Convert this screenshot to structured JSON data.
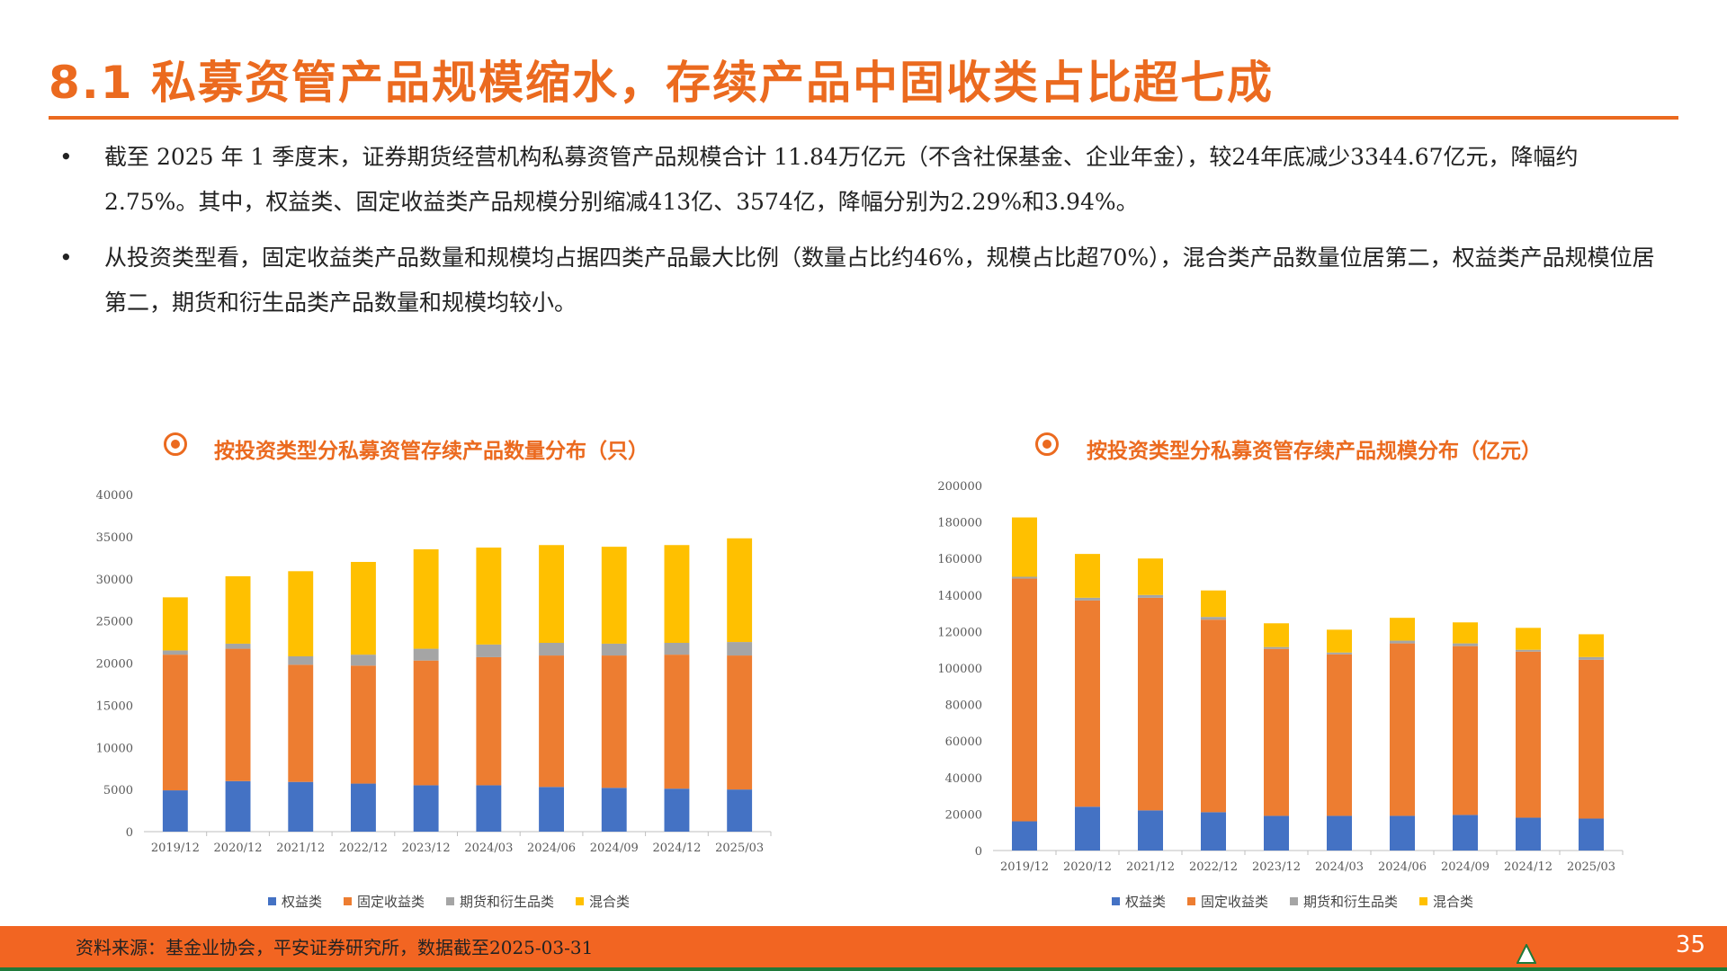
{
  "title": "8.1 私募资管产品规模缩水，存续产品中固收类占比超七成",
  "bullets": [
    "截至 2025 年 1 季度末，证券期货经营机构私募资管产品规模合计 11.84万亿元（不含社保基金、企业年金），较24年底减少3344.67亿元，降幅约2.75%。其中，权益类、固定收益类产品规模分别缩减413亿、3574亿，降幅分别为2.29%和3.94%。",
    "从投资类型看，固定收益类产品数量和规模均占据四类产品最大比例（数量占比约46%，规模占比超70%），混合类产品数量位居第二，权益类产品规模位居第二，期货和衍生品类产品数量和规模均较小。"
  ],
  "bullet_symbol": "•",
  "footer": {
    "source": "资料来源：基金业协会，平安证券研究所，数据截至2025-03-31",
    "page": "35"
  },
  "colors": {
    "accent": "#EB6A1F",
    "equity": "#4472C4",
    "fixed": "#ED7D31",
    "futures": "#A5A5A5",
    "mixed": "#FFC000"
  },
  "chart_data": [
    {
      "type": "bar",
      "stacked": true,
      "title": "按投资类型分私募资管存续产品数量分布（只）",
      "categories": [
        "2019/12",
        "2020/12",
        "2021/12",
        "2022/12",
        "2023/12",
        "2024/03",
        "2024/06",
        "2024/09",
        "2024/12",
        "2025/03"
      ],
      "ylim": [
        0,
        40000
      ],
      "yticks": [
        0,
        5000,
        10000,
        15000,
        20000,
        25000,
        30000,
        35000,
        40000
      ],
      "legend_position": "bottom",
      "series": [
        {
          "name": "权益类",
          "color": "#4472C4",
          "values": [
            4900,
            6000,
            5900,
            5700,
            5500,
            5500,
            5300,
            5200,
            5100,
            5000
          ]
        },
        {
          "name": "固定收益类",
          "color": "#ED7D31",
          "values": [
            16100,
            15700,
            13900,
            14000,
            14800,
            15200,
            15600,
            15700,
            15900,
            15900
          ]
        },
        {
          "name": "期货和衍生品类",
          "color": "#A5A5A5",
          "values": [
            500,
            600,
            1000,
            1300,
            1400,
            1500,
            1500,
            1400,
            1400,
            1600
          ]
        },
        {
          "name": "混合类",
          "color": "#FFC000",
          "values": [
            6300,
            8000,
            10100,
            11000,
            11800,
            11500,
            11600,
            11500,
            11600,
            12300
          ]
        }
      ]
    },
    {
      "type": "bar",
      "stacked": true,
      "title": "按投资类型分私募资管存续产品规模分布（亿元）",
      "categories": [
        "2019/12",
        "2020/12",
        "2021/12",
        "2022/12",
        "2023/12",
        "2024/03",
        "2024/06",
        "2024/09",
        "2024/12",
        "2025/03"
      ],
      "ylim": [
        0,
        200000
      ],
      "yticks": [
        0,
        20000,
        40000,
        60000,
        80000,
        100000,
        120000,
        140000,
        160000,
        180000,
        200000
      ],
      "legend_position": "bottom",
      "series": [
        {
          "name": "权益类",
          "color": "#4472C4",
          "values": [
            16000,
            24000,
            22000,
            21000,
            19000,
            19000,
            19000,
            19500,
            18000,
            17500
          ]
        },
        {
          "name": "固定收益类",
          "color": "#ED7D31",
          "values": [
            133000,
            113000,
            116500,
            105500,
            91500,
            88500,
            94500,
            92500,
            91000,
            87000
          ]
        },
        {
          "name": "期货和衍生品类",
          "color": "#A5A5A5",
          "values": [
            1000,
            1500,
            1500,
            1500,
            1000,
            1000,
            1500,
            1500,
            1000,
            1500
          ]
        },
        {
          "name": "混合类",
          "color": "#FFC000",
          "values": [
            32500,
            24000,
            20000,
            14500,
            13000,
            12500,
            12500,
            11500,
            12000,
            12500
          ]
        }
      ]
    }
  ]
}
